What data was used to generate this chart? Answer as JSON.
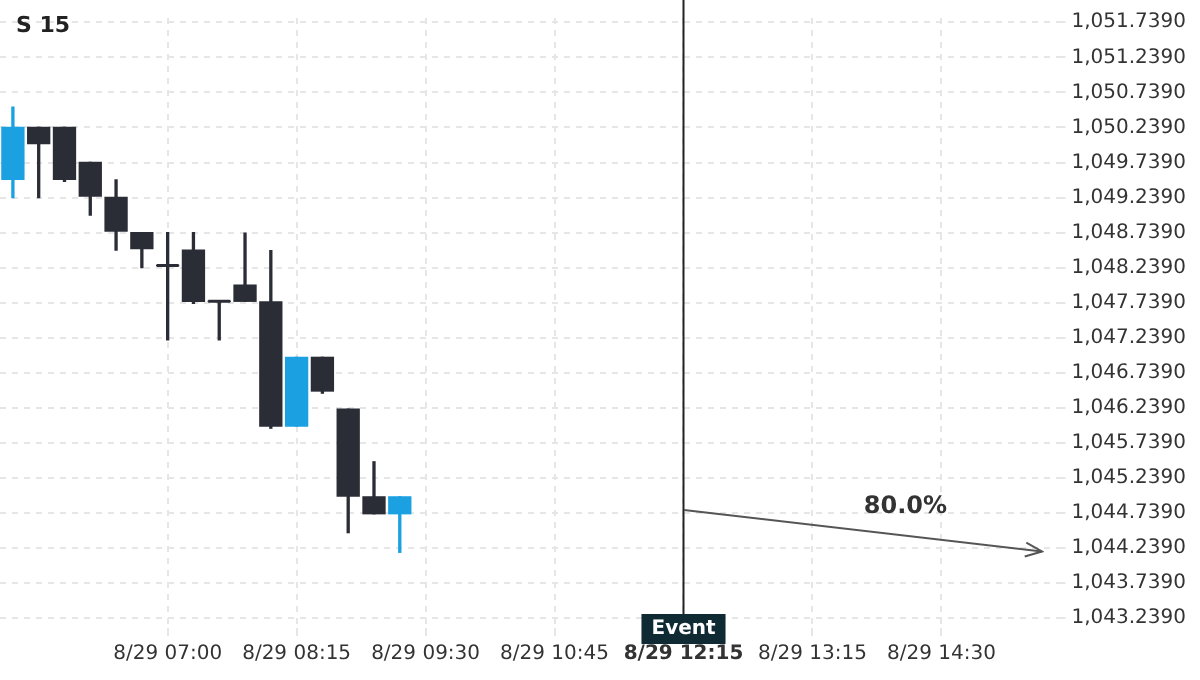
{
  "chart_data": {
    "type": "candlestick",
    "title": "S 15",
    "categories": [
      null,
      null,
      null,
      null,
      null,
      null,
      "8/29 07:00",
      null,
      null,
      null,
      null,
      "8/29 08:15",
      null,
      null,
      null,
      null,
      "8/29 09:30",
      null,
      null,
      null,
      null,
      "8/29 10:45",
      null,
      null,
      null,
      null,
      "8/29 12:15",
      null,
      null,
      null,
      null,
      "8/29 13:15",
      null,
      null,
      null,
      null,
      "8/29 14:30",
      null,
      null,
      null,
      null
    ],
    "ohlc": [
      [
        1049.5,
        1050.53,
        1049.24,
        1050.24
      ],
      [
        1050.24,
        1050.24,
        1049.24,
        1050.01
      ],
      [
        1050.24,
        1050.24,
        1049.47,
        1049.5
      ],
      [
        1049.74,
        1049.74,
        1048.99,
        1049.26
      ],
      [
        1049.24,
        1049.49,
        1048.49,
        1048.76
      ],
      [
        1048.74,
        1048.74,
        1048.24,
        1048.51
      ],
      [
        1048.27,
        1048.74,
        1047.21,
        1048.27
      ],
      [
        1048.49,
        1048.74,
        1047.73,
        1047.76
      ],
      [
        1047.76,
        1047.76,
        1047.21,
        1047.76
      ],
      [
        1047.99,
        1048.73,
        1047.76,
        1047.76
      ],
      [
        1047.75,
        1048.48,
        1045.95,
        1045.98
      ],
      [
        1045.98,
        1046.96,
        1045.98,
        1046.96
      ],
      [
        1046.96,
        1046.96,
        1046.45,
        1046.48
      ],
      [
        1046.22,
        1046.22,
        1044.46,
        1044.98
      ],
      [
        1044.97,
        1045.47,
        1044.73,
        1044.73
      ],
      [
        1044.73,
        1044.97,
        1044.18,
        1044.97
      ],
      null,
      null,
      null,
      null,
      null,
      null,
      null,
      null,
      null,
      null,
      null,
      null,
      null,
      null,
      null,
      null,
      null,
      null,
      null,
      null,
      null,
      null,
      null,
      null,
      null
    ],
    "colors": [
      "#1ba1e2",
      "#2b2d36",
      "#2b2d36",
      "#2b2d36",
      "#2b2d36",
      "#2b2d36",
      "#2b2d36",
      "#2b2d36",
      "#2b2d36",
      "#2b2d36",
      "#2b2d36",
      "#1ba1e2",
      "#2b2d36",
      "#2b2d36",
      "#2b2d36",
      "#1ba1e2",
      null,
      null,
      null,
      null,
      null,
      null,
      null,
      null,
      null,
      null,
      null,
      null,
      null,
      null,
      null,
      null,
      null,
      null,
      null,
      null,
      null,
      null,
      null,
      null,
      null
    ],
    "ylim": [
      1043.1,
      1051.8
    ],
    "yticks": [
      {
        "value": 1043.239,
        "label": "1,043.2390"
      },
      {
        "value": 1043.739,
        "label": "1,043.7390"
      },
      {
        "value": 1044.239,
        "label": "1,044.2390"
      },
      {
        "value": 1044.739,
        "label": "1,044.7390"
      },
      {
        "value": 1045.239,
        "label": "1,045.2390"
      },
      {
        "value": 1045.739,
        "label": "1,045.7390"
      },
      {
        "value": 1046.239,
        "label": "1,046.2390"
      },
      {
        "value": 1046.739,
        "label": "1,046.7390"
      },
      {
        "value": 1047.239,
        "label": "1,047.2390"
      },
      {
        "value": 1047.739,
        "label": "1,047.7390"
      },
      {
        "value": 1048.239,
        "label": "1,048.2390"
      },
      {
        "value": 1048.739,
        "label": "1,048.7390"
      },
      {
        "value": 1049.239,
        "label": "1,049.2390"
      },
      {
        "value": 1049.739,
        "label": "1,049.7390"
      },
      {
        "value": 1050.239,
        "label": "1,050.2390"
      },
      {
        "value": 1050.739,
        "label": "1,050.7390"
      },
      {
        "value": 1051.239,
        "label": "1,051.2390"
      },
      {
        "value": 1051.739,
        "label": "1,051.7390"
      }
    ],
    "grid": true,
    "ref_lines": [
      {
        "axis": "x",
        "value": "8/29 12:15",
        "label": "Event",
        "color": "#222222"
      }
    ],
    "annotations": [
      "80.0%"
    ]
  }
}
